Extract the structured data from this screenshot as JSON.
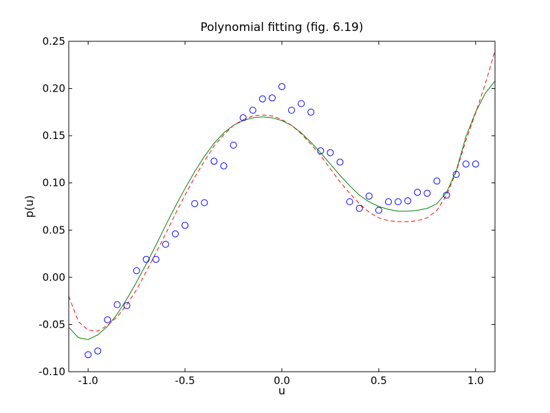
{
  "chart_data": {
    "type": "scatter",
    "title": "Polynomial fitting (fig. 6.19)",
    "xlabel": "u",
    "ylabel": "p(u)",
    "xlim": [
      -1.1,
      1.1
    ],
    "ylim": [
      -0.1,
      0.25
    ],
    "grid": false,
    "legend": "none",
    "x_ticks": [
      -1.0,
      -0.5,
      0.0,
      0.5,
      1.0
    ],
    "x_tick_labels": [
      "-1.0",
      "-0.5",
      "0.0",
      "0.5",
      "1.0"
    ],
    "y_ticks": [
      -0.1,
      -0.05,
      0.0,
      0.05,
      0.1,
      0.15,
      0.2,
      0.25
    ],
    "y_tick_labels": [
      "-0.10",
      "-0.05",
      "0.00",
      "0.05",
      "0.10",
      "0.15",
      "0.20",
      "0.25"
    ],
    "series": [
      {
        "kind": "scatter",
        "color": "#0000ff",
        "marker": "hollow-circle",
        "x": [
          -1.0,
          -0.95,
          -0.9,
          -0.85,
          -0.8,
          -0.75,
          -0.7,
          -0.65,
          -0.6,
          -0.55,
          -0.5,
          -0.45,
          -0.4,
          -0.35,
          -0.3,
          -0.25,
          -0.2,
          -0.15,
          -0.1,
          -0.05,
          0.0,
          0.05,
          0.1,
          0.15,
          0.2,
          0.25,
          0.3,
          0.35,
          0.4,
          0.45,
          0.5,
          0.55,
          0.6,
          0.65,
          0.7,
          0.75,
          0.8,
          0.85,
          0.9,
          0.95,
          1.0
        ],
        "y": [
          -0.082,
          -0.078,
          -0.045,
          -0.029,
          -0.03,
          0.007,
          0.019,
          0.019,
          0.035,
          0.046,
          0.055,
          0.078,
          0.079,
          0.123,
          0.118,
          0.14,
          0.169,
          0.177,
          0.189,
          0.19,
          0.202,
          0.177,
          0.184,
          0.175,
          0.134,
          0.132,
          0.122,
          0.08,
          0.073,
          0.086,
          0.071,
          0.08,
          0.08,
          0.081,
          0.09,
          0.089,
          0.102,
          0.087,
          0.109,
          0.12,
          0.12
        ]
      },
      {
        "kind": "line",
        "color": "#008000",
        "style": "solid",
        "x": [
          -1.1,
          -1.05,
          -1.0,
          -0.95,
          -0.9,
          -0.85,
          -0.8,
          -0.75,
          -0.7,
          -0.65,
          -0.6,
          -0.55,
          -0.5,
          -0.45,
          -0.4,
          -0.35,
          -0.3,
          -0.25,
          -0.2,
          -0.15,
          -0.1,
          -0.05,
          0.0,
          0.05,
          0.1,
          0.15,
          0.2,
          0.25,
          0.3,
          0.35,
          0.4,
          0.45,
          0.5,
          0.55,
          0.6,
          0.65,
          0.7,
          0.75,
          0.8,
          0.85,
          0.9,
          0.95,
          1.0,
          1.05,
          1.1
        ],
        "y": [
          -0.053,
          -0.064,
          -0.066,
          -0.061,
          -0.052,
          -0.039,
          -0.023,
          -0.005,
          0.014,
          0.034,
          0.055,
          0.075,
          0.094,
          0.112,
          0.128,
          0.142,
          0.153,
          0.161,
          0.166,
          0.169,
          0.17,
          0.169,
          0.166,
          0.161,
          0.153,
          0.143,
          0.132,
          0.12,
          0.108,
          0.097,
          0.087,
          0.08,
          0.075,
          0.072,
          0.07,
          0.07,
          0.071,
          0.073,
          0.078,
          0.09,
          0.113,
          0.149,
          0.175,
          0.195,
          0.208
        ]
      },
      {
        "kind": "line",
        "color": "#ff0000",
        "style": "dashed",
        "x": [
          -1.1,
          -1.05,
          -1.0,
          -0.95,
          -0.9,
          -0.85,
          -0.8,
          -0.75,
          -0.7,
          -0.65,
          -0.6,
          -0.55,
          -0.5,
          -0.45,
          -0.4,
          -0.35,
          -0.3,
          -0.25,
          -0.2,
          -0.15,
          -0.1,
          -0.05,
          0.0,
          0.05,
          0.1,
          0.15,
          0.2,
          0.25,
          0.3,
          0.35,
          0.4,
          0.45,
          0.5,
          0.55,
          0.6,
          0.65,
          0.7,
          0.75,
          0.8,
          0.85,
          0.9,
          0.95,
          1.0,
          1.05,
          1.1
        ],
        "y": [
          -0.02,
          -0.047,
          -0.056,
          -0.057,
          -0.051,
          -0.042,
          -0.029,
          -0.013,
          0.006,
          0.026,
          0.046,
          0.067,
          0.087,
          0.106,
          0.123,
          0.139,
          0.151,
          0.161,
          0.167,
          0.171,
          0.172,
          0.171,
          0.167,
          0.161,
          0.152,
          0.141,
          0.129,
          0.115,
          0.101,
          0.089,
          0.078,
          0.069,
          0.063,
          0.06,
          0.059,
          0.059,
          0.06,
          0.063,
          0.071,
          0.087,
          0.112,
          0.145,
          0.174,
          0.205,
          0.24
        ]
      }
    ]
  }
}
